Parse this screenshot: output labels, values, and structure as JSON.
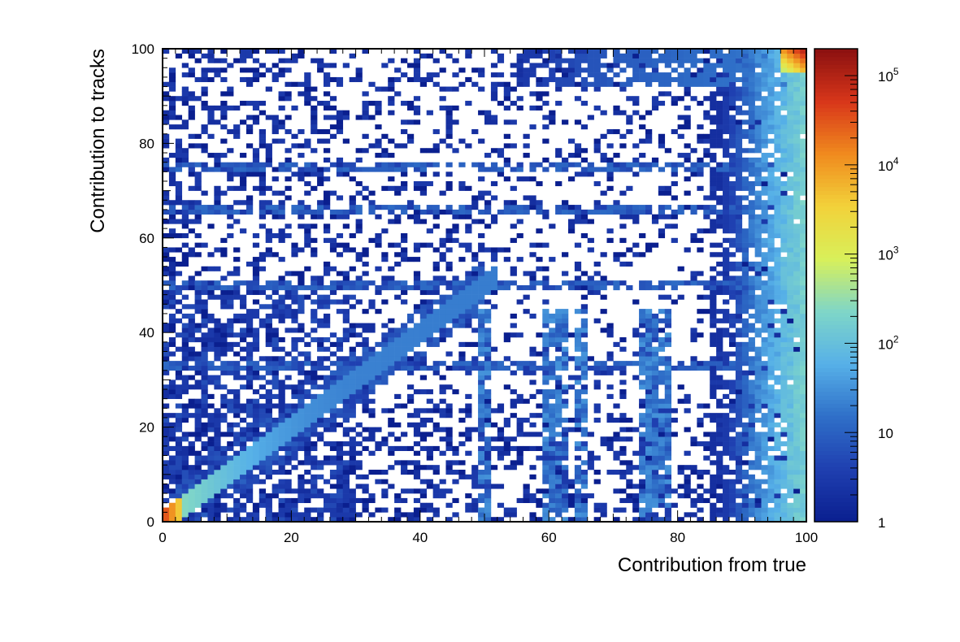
{
  "chart_data": {
    "type": "heatmap",
    "title": "",
    "xlabel": "Contribution from true",
    "ylabel": "Contribution to tracks",
    "xlim": [
      0,
      100
    ],
    "ylim": [
      0,
      100
    ],
    "x_ticks": [
      0,
      20,
      40,
      60,
      80,
      100
    ],
    "y_ticks": [
      0,
      20,
      40,
      60,
      80,
      100
    ],
    "x_tick_labels": [
      "0",
      "20",
      "40",
      "60",
      "80",
      "100"
    ],
    "y_tick_labels": [
      "0",
      "20",
      "40",
      "60",
      "80",
      "100"
    ],
    "z_scale": "log",
    "zlim": [
      1,
      200000
    ],
    "colorbar": {
      "tick_values": [
        1,
        10,
        100,
        1000,
        10000,
        100000
      ],
      "labels": [
        {
          "base": "1",
          "exp": ""
        },
        {
          "base": "10",
          "exp": ""
        },
        {
          "base": "10",
          "exp": "2"
        },
        {
          "base": "10",
          "exp": "3"
        },
        {
          "base": "10",
          "exp": "4"
        },
        {
          "base": "10",
          "exp": "5"
        }
      ],
      "colormap": [
        "#0a1f8f",
        "#1f3fb0",
        "#2f6fc8",
        "#56b0e8",
        "#7fd6c8",
        "#d8f05a",
        "#f2d23a",
        "#f08a1e",
        "#d8361a",
        "#8a1010"
      ]
    },
    "bins": {
      "nx": 100,
      "ny": 100
    },
    "grid": false,
    "legend": "none",
    "features": {
      "diagonal": {
        "x_range": [
          0,
          50
        ],
        "peak_counts_at_origin": 50000,
        "counts_along": 20
      },
      "high_x_band": {
        "x_range": [
          85,
          100
        ],
        "counts_near_100": 200
      },
      "top_right_hotspot": {
        "x": [
          96,
          100
        ],
        "y": [
          95,
          100
        ],
        "peak_counts": 150000
      },
      "y_line_at": [
        50,
        75,
        66,
        33
      ],
      "x_line_at": [
        50,
        60,
        62,
        65,
        75,
        76,
        78
      ]
    }
  }
}
